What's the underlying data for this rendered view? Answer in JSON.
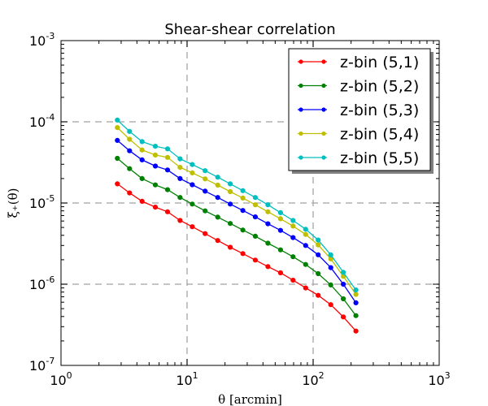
{
  "chart_data": {
    "type": "line",
    "title": "Shear-shear correlation",
    "xlabel": "θ [arcmin]",
    "ylabel": "ξ₊(θ)",
    "x_scale": "log",
    "y_scale": "log",
    "xlim": [
      1,
      1000
    ],
    "ylim": [
      1e-07,
      0.001
    ],
    "grid": "major dashed",
    "legend_position": "top-right",
    "x_ticks": [
      {
        "base": "10",
        "exp": "0",
        "value": 1
      },
      {
        "base": "10",
        "exp": "1",
        "value": 10
      },
      {
        "base": "10",
        "exp": "2",
        "value": 100
      },
      {
        "base": "10",
        "exp": "3",
        "value": 1000
      }
    ],
    "y_ticks": [
      {
        "base": "10",
        "exp": "-7",
        "value": 1e-07
      },
      {
        "base": "10",
        "exp": "-6",
        "value": 1e-06
      },
      {
        "base": "10",
        "exp": "-5",
        "value": 1e-05
      },
      {
        "base": "10",
        "exp": "-4",
        "value": 0.0001
      },
      {
        "base": "10",
        "exp": "-3",
        "value": 0.001
      }
    ],
    "x": [
      2.8,
      3.5,
      4.4,
      5.6,
      7.0,
      8.8,
      11.0,
      13.9,
      17.5,
      22.0,
      27.7,
      34.8,
      43.8,
      55.1,
      69.3,
      87.2,
      109.7,
      138.0,
      173.6,
      218.4
    ],
    "series": [
      {
        "name": "z-bin (5,1)",
        "color": "#ff0000",
        "values": [
          1.72e-05,
          1.33e-05,
          1.05e-05,
          8.9e-06,
          7.8e-06,
          6.1e-06,
          5.1e-06,
          4.2e-06,
          3.45e-06,
          2.85e-06,
          2.38e-06,
          1.98e-06,
          1.65e-06,
          1.38e-06,
          1.12e-06,
          9e-07,
          7.3e-07,
          5.6e-07,
          3.95e-07,
          2.65e-07
        ]
      },
      {
        "name": "z-bin (5,2)",
        "color": "#008000",
        "values": [
          3.55e-05,
          2.65e-05,
          2e-05,
          1.67e-05,
          1.46e-05,
          1.17e-05,
          9.7e-06,
          8e-06,
          6.7e-06,
          5.6e-06,
          4.65e-06,
          3.9e-06,
          3.2e-06,
          2.65e-06,
          2.18e-06,
          1.75e-06,
          1.35e-06,
          9.8e-07,
          6.6e-07,
          4.1e-07
        ]
      },
      {
        "name": "z-bin (5,3)",
        "color": "#0000ff",
        "values": [
          5.9e-05,
          4.4e-05,
          3.4e-05,
          2.85e-05,
          2.55e-05,
          2e-05,
          1.68e-05,
          1.4e-05,
          1.17e-05,
          9.7e-06,
          8.1e-06,
          6.75e-06,
          5.55e-06,
          4.6e-06,
          3.75e-06,
          3e-06,
          2.3e-06,
          1.6e-06,
          1e-06,
          5.9e-07
        ]
      },
      {
        "name": "z-bin (5,4)",
        "color": "#bfbf00",
        "values": [
          8.5e-05,
          6.1e-05,
          4.5e-05,
          3.9e-05,
          3.65e-05,
          2.75e-05,
          2.35e-05,
          1.98e-05,
          1.66e-05,
          1.38e-05,
          1.15e-05,
          9.5e-06,
          7.8e-06,
          6.4e-06,
          5.2e-06,
          4.1e-06,
          3.05e-06,
          2.05e-06,
          1.25e-06,
          7.5e-07
        ]
      },
      {
        "name": "z-bin (5,5)",
        "color": "#00bfbf",
        "values": [
          0.000105,
          7.6e-05,
          5.7e-05,
          5e-05,
          4.65e-05,
          3.5e-05,
          2.98e-05,
          2.5e-05,
          2.08e-05,
          1.72e-05,
          1.42e-05,
          1.17e-05,
          9.5e-06,
          7.6e-06,
          6.1e-06,
          4.75e-06,
          3.5e-06,
          2.3e-06,
          1.4e-06,
          8.5e-07
        ]
      }
    ]
  }
}
